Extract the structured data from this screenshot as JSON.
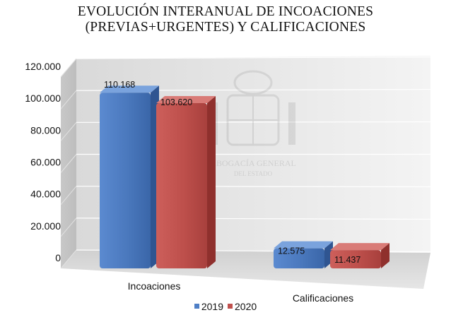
{
  "chart_data": {
    "type": "bar",
    "title_line1": "EVOLUCIÓN INTERANUAL DE INCOACIONES",
    "title_line2": "(PREVIAS+URGENTES) Y CALIFICACIONES",
    "categories": [
      "Incoaciones",
      "Calificaciones"
    ],
    "series": [
      {
        "name": "2019",
        "values": [
          110168,
          12575
        ],
        "labels": [
          "110.168",
          "12.575"
        ],
        "color": "#4f7fc6"
      },
      {
        "name": "2020",
        "values": [
          103620,
          11437
        ],
        "labels": [
          "103.620",
          "11.437"
        ],
        "color": "#c0504d"
      }
    ],
    "yticks": [
      "0",
      "20.000",
      "40.000",
      "60.000",
      "80.000",
      "100.000",
      "120.000"
    ],
    "ylim": [
      0,
      120000
    ],
    "grid": true,
    "legend_position": "bottom",
    "watermark": "ABOGACÍA GENERAL DEL ESTADO"
  }
}
